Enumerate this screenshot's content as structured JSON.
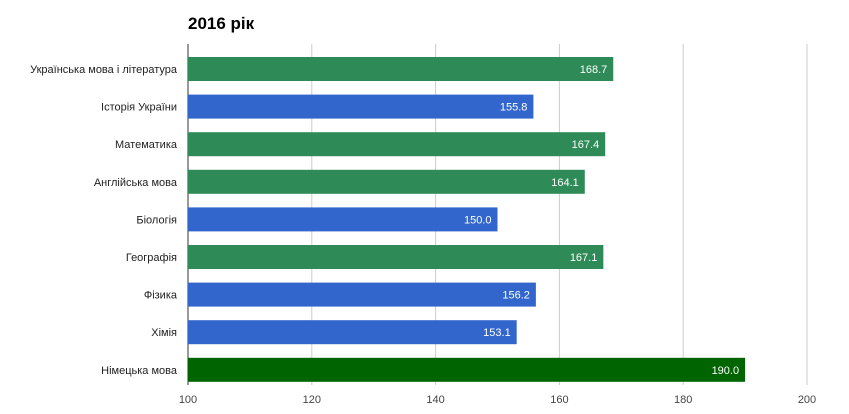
{
  "chart_data": {
    "type": "bar",
    "orientation": "horizontal",
    "title": "2016 рік",
    "categories": [
      "Українська мова і література",
      "Історія України",
      "Математика",
      "Англійська мова",
      "Біологія",
      "Географія",
      "Фізика",
      "Хімія",
      "Німецька мова"
    ],
    "values": [
      168.7,
      155.8,
      167.4,
      164.1,
      150.0,
      167.1,
      156.2,
      153.1,
      190.0
    ],
    "value_labels": [
      "168.7",
      "155.8",
      "167.4",
      "164.1",
      "150.0",
      "167.1",
      "156.2",
      "153.1",
      "190.0"
    ],
    "bar_colors": [
      "#2e8b57",
      "#3366cc",
      "#2e8b57",
      "#2e8b57",
      "#3366cc",
      "#2e8b57",
      "#3366cc",
      "#3366cc",
      "#006400"
    ],
    "xlim": [
      100,
      200
    ],
    "x_ticks": [
      100,
      120,
      140,
      160,
      180,
      200
    ],
    "x_tick_labels": [
      "100",
      "120",
      "140",
      "160",
      "180",
      "200"
    ],
    "grid": true,
    "legend": "none"
  }
}
